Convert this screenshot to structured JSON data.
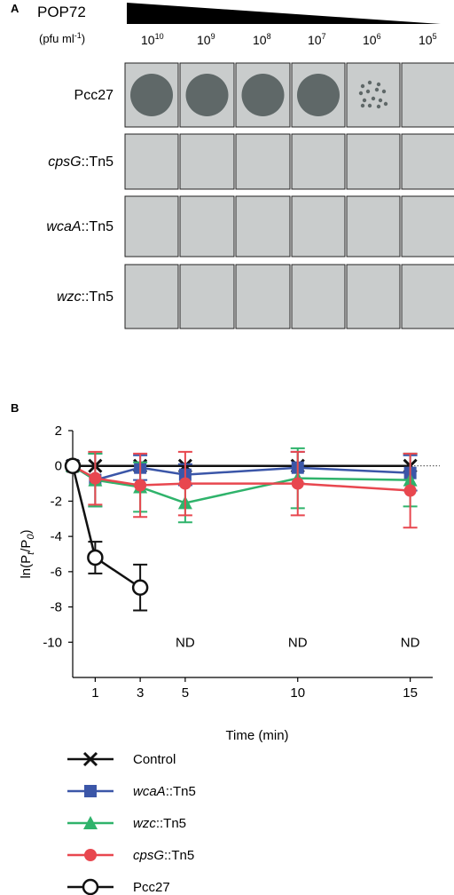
{
  "panel_a": {
    "label": "A",
    "title": "POP72",
    "unit_prefix": "(pfu ml",
    "unit_exp": "-1",
    "unit_suffix": ")",
    "dilutions": [
      {
        "base": "10",
        "exp": "10"
      },
      {
        "base": "10",
        "exp": "9"
      },
      {
        "base": "10",
        "exp": "8"
      },
      {
        "base": "10",
        "exp": "7"
      },
      {
        "base": "10",
        "exp": "6"
      },
      {
        "base": "10",
        "exp": "5"
      }
    ],
    "rows": [
      {
        "italic": "",
        "plain": "Pcc27",
        "plaques": [
          "clear",
          "clear",
          "clear",
          "clear",
          "individual",
          "none"
        ]
      },
      {
        "italic": "cpsG",
        "plain": "::Tn5",
        "plaques": [
          "none",
          "none",
          "none",
          "none",
          "none",
          "none"
        ]
      },
      {
        "italic": "wcaA",
        "plain": "::Tn5",
        "plaques": [
          "none",
          "none",
          "none",
          "none",
          "none",
          "none"
        ]
      },
      {
        "italic": "wzc",
        "plain": "::Tn5",
        "plaques": [
          "none",
          "none",
          "none",
          "none",
          "none",
          "none"
        ]
      }
    ],
    "colors": {
      "lawn": "#c9cccc",
      "plaque": "#5f6868",
      "border": "#222222"
    }
  },
  "chart_data": {
    "type": "line",
    "panel_label": "B",
    "xlabel": "Time (min)",
    "ylabel_parts": {
      "prefix": "ln(P",
      "sub1": "t",
      "mid": "/P",
      "sub2": "0",
      "suffix": ")"
    },
    "xlim": [
      0,
      16
    ],
    "ylim": [
      -12,
      2
    ],
    "xticks": [
      1,
      3,
      5,
      10,
      15
    ],
    "yticks": [
      2,
      0,
      -2,
      -4,
      -6,
      -8,
      -10
    ],
    "reference_line": 0,
    "nd_annotations": [
      {
        "x": 5,
        "text": "ND"
      },
      {
        "x": 10,
        "text": "ND"
      },
      {
        "x": 15,
        "text": "ND"
      }
    ],
    "series": [
      {
        "italic": "",
        "plain": "Control",
        "color": "#111111",
        "marker": "x",
        "x": [
          0,
          1,
          3,
          5,
          10,
          15
        ],
        "y": [
          0,
          0,
          0,
          0,
          0,
          0
        ],
        "err": [
          0,
          0,
          0,
          0,
          0,
          0
        ]
      },
      {
        "italic": "wcaA",
        "plain": "::Tn5",
        "color": "#3b56a8",
        "marker": "square",
        "x": [
          0,
          1,
          3,
          5,
          10,
          15
        ],
        "y": [
          0,
          -0.8,
          -0.1,
          -0.5,
          -0.1,
          -0.4
        ],
        "err": [
          0,
          1.5,
          0.7,
          0.6,
          0.9,
          1.0
        ]
      },
      {
        "italic": "wzc",
        "plain": "::Tn5",
        "color": "#2fb36b",
        "marker": "triangle",
        "x": [
          0,
          1,
          3,
          5,
          10,
          15
        ],
        "y": [
          0,
          -0.8,
          -1.2,
          -2.1,
          -0.7,
          -0.8
        ],
        "err": [
          0,
          1.5,
          1.4,
          1.1,
          1.7,
          1.5
        ]
      },
      {
        "italic": "cpsG",
        "plain": "::Tn5",
        "color": "#e8474f",
        "marker": "circle",
        "x": [
          0,
          1,
          3,
          5,
          10,
          15
        ],
        "y": [
          0,
          -0.7,
          -1.1,
          -1.0,
          -1.0,
          -1.4
        ],
        "err": [
          0,
          1.5,
          1.8,
          1.8,
          1.8,
          2.1
        ]
      },
      {
        "italic": "",
        "plain": "Pcc27",
        "color": "#111111",
        "marker": "open-circle",
        "x": [
          0,
          1,
          3
        ],
        "y": [
          0,
          -5.2,
          -6.9
        ],
        "err": [
          0,
          0.9,
          1.3
        ]
      }
    ]
  }
}
